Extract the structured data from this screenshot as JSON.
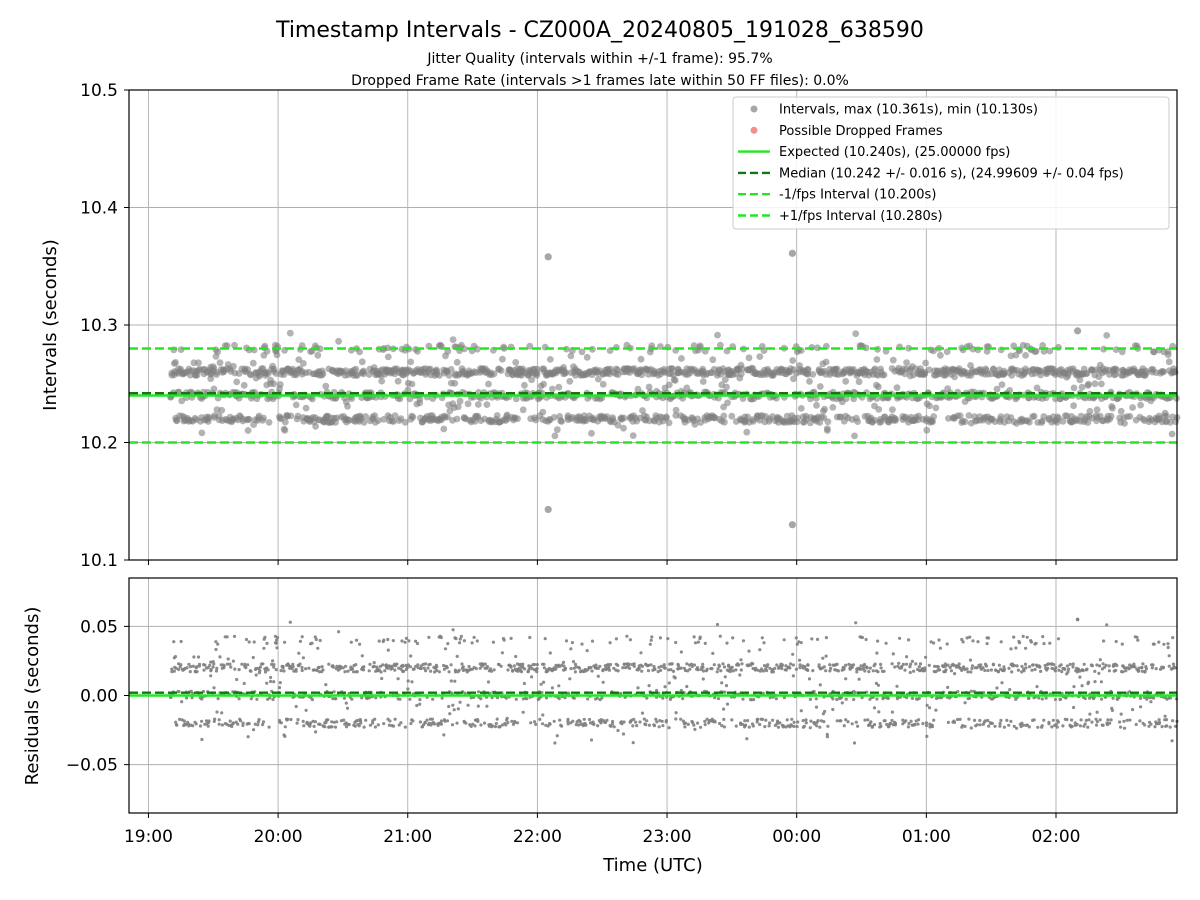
{
  "figure": {
    "title": "Timestamp Intervals - CZ000A_20240805_191028_638590",
    "subtitle_1": "Jitter Quality (intervals within +/-1 frame): 95.7%",
    "subtitle_2": "Dropped Frame Rate (intervals >1 frames late within 50 FF files): 0.0%"
  },
  "colors": {
    "points": "#808080",
    "dropped": "#f06060",
    "expected": "#22e822",
    "median": "#117711",
    "fps_bounds": "#22e822",
    "grid": "#b0b0b0"
  },
  "chart_data": [
    {
      "type": "scatter",
      "ylabel": "Intervals (seconds)",
      "ylim": [
        10.1,
        10.5
      ],
      "yticks": [
        "10.1",
        "10.2",
        "10.3",
        "10.4",
        "10.5"
      ],
      "grid": true,
      "legend_position": "top-right",
      "legend": [
        {
          "kind": "dot",
          "color": "#808080",
          "label": "Intervals, max (10.361s), min (10.130s)"
        },
        {
          "kind": "dot",
          "color": "#f06060",
          "label": "Possible Dropped Frames"
        },
        {
          "kind": "solid",
          "color": "#22e822",
          "label": "Expected (10.240s), (25.00000 fps)"
        },
        {
          "kind": "dashed",
          "color": "#117711",
          "label": "Median (10.242 +/- 0.016 s), (24.99609 +/- 0.04 fps)"
        },
        {
          "kind": "dashed",
          "color": "#22e822",
          "label": "-1/fps Interval (10.200s)"
        },
        {
          "kind": "dashed",
          "color": "#22e822",
          "label": "+1/fps Interval (10.280s)"
        }
      ],
      "reference_lines": {
        "expected": 10.24,
        "median": 10.242,
        "minus_fps": 10.2,
        "plus_fps": 10.28
      },
      "interval_levels": [
        10.22,
        10.24,
        10.26,
        10.28
      ],
      "outliers": [
        {
          "x": "22:05",
          "y": 10.358
        },
        {
          "x": "22:05",
          "y": 10.143
        },
        {
          "x": "23:58",
          "y": 10.361
        },
        {
          "x": "23:58",
          "y": 10.13
        },
        {
          "x": "02:10",
          "y": 10.295
        }
      ]
    },
    {
      "type": "scatter",
      "xlabel": "Time (UTC)",
      "ylabel": "Residuals (seconds)",
      "ylim": [
        -0.085,
        0.085
      ],
      "yticks": [
        "−0.05",
        "0.00",
        "0.05"
      ],
      "xticks": [
        "19:00",
        "20:00",
        "21:00",
        "22:00",
        "23:00",
        "00:00",
        "01:00",
        "02:00"
      ],
      "xlim": [
        "18:51",
        "02:56"
      ],
      "data_start": "19:10",
      "grid": true,
      "reference_lines": {
        "expected": 0.0,
        "median": 0.002
      },
      "residual_levels": [
        -0.02,
        0.0,
        0.02,
        0.04
      ],
      "outliers": [
        {
          "x": "02:10",
          "y": 0.055
        }
      ]
    }
  ]
}
